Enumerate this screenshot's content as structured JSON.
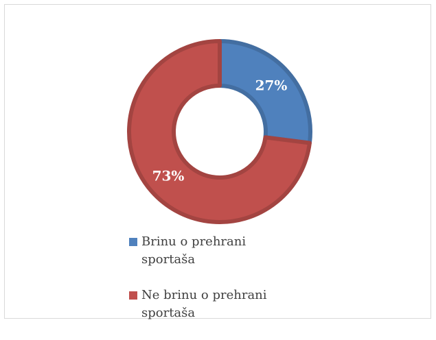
{
  "chart_data": {
    "type": "donut",
    "categories": [
      "Brinu o prehrani sportaša",
      "Ne brinu o prehrani sportaša"
    ],
    "values": [
      27,
      73
    ],
    "value_labels": [
      "27%",
      "73%"
    ],
    "colors": [
      "#4f81bd",
      "#c0504d"
    ],
    "legend": "bottom"
  }
}
